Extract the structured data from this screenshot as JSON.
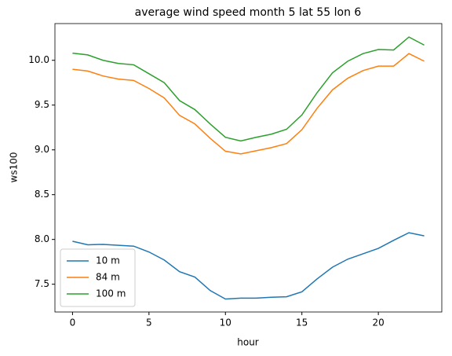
{
  "chart_data": {
    "type": "line",
    "title": "average wind speed month 5 lat 55 lon 6",
    "xlabel": "hour",
    "ylabel": "ws100",
    "x": [
      0,
      1,
      2,
      3,
      4,
      5,
      6,
      7,
      8,
      9,
      10,
      11,
      12,
      13,
      14,
      15,
      16,
      17,
      18,
      19,
      20,
      21,
      22,
      23
    ],
    "series": [
      {
        "name": "10 m",
        "color": "#1f77b4",
        "values": [
          7.98,
          7.94,
          7.945,
          7.935,
          7.925,
          7.86,
          7.77,
          7.64,
          7.58,
          7.43,
          7.335,
          7.345,
          7.345,
          7.355,
          7.36,
          7.415,
          7.56,
          7.69,
          7.78,
          7.84,
          7.9,
          7.99,
          8.075,
          8.04
        ]
      },
      {
        "name": "84 m",
        "color": "#ff7f0e",
        "values": [
          9.9,
          9.88,
          9.825,
          9.79,
          9.775,
          9.685,
          9.58,
          9.385,
          9.29,
          9.13,
          8.985,
          8.955,
          8.99,
          9.025,
          9.07,
          9.225,
          9.465,
          9.67,
          9.8,
          9.885,
          9.935,
          9.935,
          10.075,
          9.99
        ]
      },
      {
        "name": "100 m",
        "color": "#2ca02c",
        "values": [
          10.08,
          10.06,
          10.0,
          9.965,
          9.95,
          9.85,
          9.75,
          9.55,
          9.45,
          9.29,
          9.14,
          9.1,
          9.14,
          9.175,
          9.23,
          9.39,
          9.64,
          9.86,
          9.99,
          10.075,
          10.12,
          10.115,
          10.26,
          10.17
        ]
      }
    ],
    "xlim": [
      -1.15,
      24.15
    ],
    "ylim": [
      7.19,
      10.41
    ],
    "xticks": [
      0,
      5,
      10,
      15,
      20
    ],
    "yticks": [
      7.5,
      {
        "value": 8,
        "label": "8.0"
      },
      8.5,
      {
        "value": 9,
        "label": "9.0"
      },
      9.5,
      {
        "value": 10,
        "label": "10.0"
      }
    ],
    "grid": false,
    "legend": "lower left"
  }
}
